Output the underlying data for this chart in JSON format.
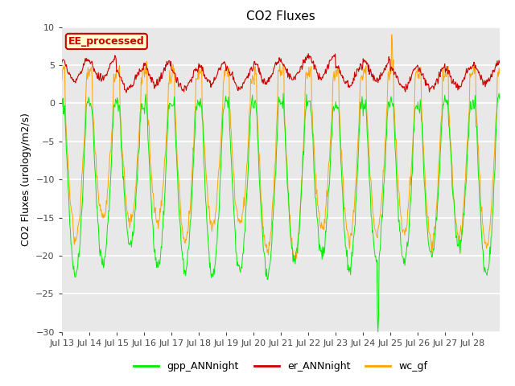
{
  "title": "CO2 Fluxes",
  "ylabel": "CO2 Fluxes (urology/m2/s)",
  "ylim": [
    -30,
    10
  ],
  "yticks": [
    -30,
    -25,
    -20,
    -15,
    -10,
    -5,
    0,
    5,
    10
  ],
  "xtick_labels": [
    "Jul 13",
    "Jul 14",
    "Jul 15",
    "Jul 16",
    "Jul 17",
    "Jul 18",
    "Jul 19",
    "Jul 20",
    "Jul 21",
    "Jul 22",
    "Jul 23",
    "Jul 24",
    "Jul 25",
    "Jul 26",
    "Jul 27",
    "Jul 28"
  ],
  "background_color": "#e8e8e8",
  "grid_color": "#ffffff",
  "line_colors": {
    "gpp_ANNnight": "#00ee00",
    "er_ANNnight": "#cc0000",
    "wc_gf": "#ffa500"
  },
  "legend_box_label": "EE_processed",
  "legend_box_facecolor": "#ffffcc",
  "legend_box_edgecolor": "#cc0000",
  "n_points_per_day": 48,
  "n_days": 16,
  "title_fontsize": 11,
  "tick_fontsize": 8,
  "ylabel_fontsize": 9,
  "legend_fontsize": 9
}
